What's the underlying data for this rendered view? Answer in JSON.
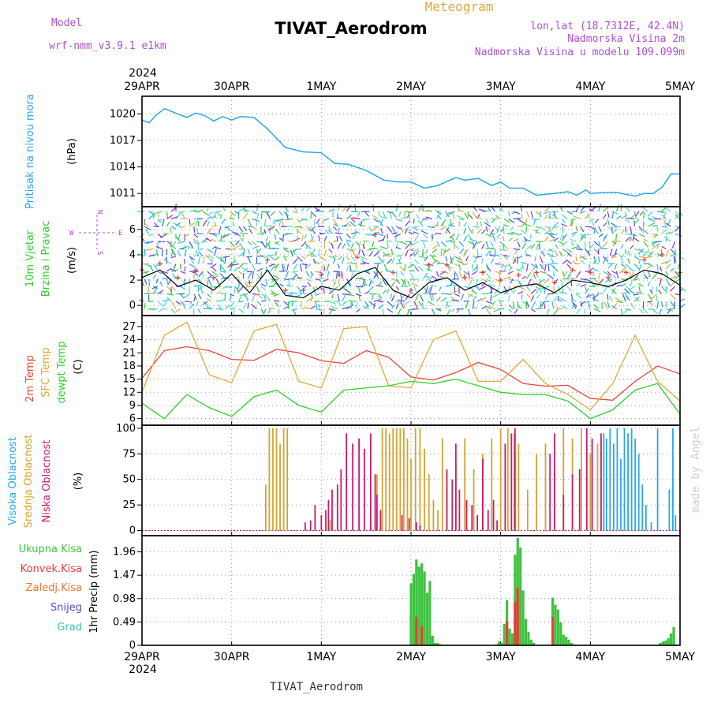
{
  "header": {
    "model_label": "Model",
    "model_name": "wrf-nmm_v3.9.1 e1km",
    "title": "TIVAT_Aerodrom",
    "meteogram_label": "Meteogram",
    "lonlat": "lon,lat (18.7312E, 42.4N)",
    "altitude": "Nadmorska Visina 2m",
    "model_altitude": "Nadmorska Visina u modelu 109.099m",
    "watermark": "made by Angel",
    "footer": "TIVAT_Aerodrom",
    "year": "2024"
  },
  "colors": {
    "pressure": "#29a7e8",
    "temp": "#e8453c",
    "sfc_temp": "#e0a93c",
    "dewpt": "#2fcf2f",
    "high_cloud": "#29a7e8",
    "mid_cloud": "#d6a330",
    "low_cloud": "#c81c6a",
    "total_precip": "#3fc23f",
    "conv_precip": "#e83c3c",
    "frozen_precip": "#f0752d",
    "snow": "#4b4bd8",
    "grad": "#3cbfae",
    "wind_speed": "#000000",
    "wind_gust": "#e83c3c",
    "header_purple": "#b04fd6",
    "meteogram_orange": "#e0a93c"
  },
  "x_axis": {
    "dates": [
      "29APR",
      "30APR",
      "1MAY",
      "2MAY",
      "3MAY",
      "4MAY",
      "5MAY"
    ],
    "range_days": [
      0,
      6
    ]
  },
  "chart_data": [
    {
      "type": "line",
      "panel": "pressure",
      "ylabel": "Pritisak na nivou mora",
      "unit": "(hPa)",
      "yticks": [
        1011,
        1014,
        1017,
        1020
      ],
      "ylim": [
        1009.5,
        1022
      ],
      "x": [
        0,
        0.08,
        0.15,
        0.25,
        0.4,
        0.5,
        0.6,
        0.7,
        0.8,
        0.9,
        1.0,
        1.1,
        1.25,
        1.4,
        1.6,
        1.8,
        2.0,
        2.15,
        2.3,
        2.5,
        2.7,
        2.85,
        3.0,
        3.15,
        3.3,
        3.5,
        3.6,
        3.75,
        3.9,
        4.0,
        4.1,
        4.25,
        4.4,
        4.6,
        4.75,
        4.85,
        4.95,
        5.0,
        5.15,
        5.3,
        5.5,
        5.6,
        5.7,
        5.8,
        5.9,
        6.0
      ],
      "values": [
        1019.3,
        1019.0,
        1019.8,
        1020.6,
        1020.0,
        1019.6,
        1020.1,
        1019.8,
        1019.2,
        1019.7,
        1019.3,
        1019.7,
        1019.6,
        1018.3,
        1016.2,
        1015.7,
        1015.6,
        1014.4,
        1014.3,
        1013.6,
        1012.5,
        1012.3,
        1012.3,
        1011.6,
        1011.9,
        1012.8,
        1012.5,
        1012.7,
        1011.9,
        1012.3,
        1011.6,
        1011.6,
        1010.8,
        1011.0,
        1011.2,
        1010.8,
        1011.4,
        1011.0,
        1011.1,
        1011.1,
        1010.7,
        1011.0,
        1011.0,
        1011.7,
        1013.2,
        1013.2
      ],
      "series": [
        {
          "name": "Pritisak na nivou mora"
        }
      ]
    },
    {
      "type": "line",
      "panel": "wind",
      "ylabel": "10m Vjetar",
      "ylabel2": "Brzina i Pravac",
      "unit": "(m/s)",
      "compass": {
        "w": "W",
        "e": "E",
        "n": "N",
        "s": "S"
      },
      "yticks": [
        0,
        2,
        4,
        6
      ],
      "ylim": [
        -0.8,
        7.8
      ],
      "x": [
        0,
        0.2,
        0.4,
        0.6,
        0.8,
        1.0,
        1.2,
        1.4,
        1.6,
        1.8,
        2.0,
        2.2,
        2.4,
        2.6,
        2.8,
        3.0,
        3.2,
        3.4,
        3.6,
        3.8,
        4.0,
        4.2,
        4.4,
        4.6,
        4.8,
        5.0,
        5.2,
        5.4,
        5.6,
        5.8,
        6.0
      ],
      "values": [
        2.2,
        2.8,
        1.5,
        2.0,
        1.2,
        2.5,
        1.0,
        2.8,
        0.8,
        0.6,
        1.5,
        1.2,
        2.5,
        3.0,
        1.2,
        0.6,
        1.8,
        2.2,
        1.2,
        1.8,
        1.0,
        1.5,
        1.7,
        1.0,
        2.0,
        1.8,
        1.5,
        2.0,
        2.8,
        2.5,
        1.6
      ],
      "gusts": [
        2.8,
        3.3,
        2.2,
        2.8,
        2.2,
        3.2,
        1.8,
        3.6,
        1.2,
        1.2,
        2.4,
        2.4,
        3.8,
        5.6,
        2.6,
        1.2,
        3.2,
        3.2,
        2.2,
        2.6,
        2.0,
        2.4,
        2.6,
        1.8,
        2.8,
        2.6,
        2.2,
        2.6,
        3.6,
        4.0,
        2.6
      ],
      "series": [
        {
          "name": "10m Vjetar"
        }
      ]
    },
    {
      "type": "line",
      "panel": "temperature",
      "unit": "(C)",
      "yticks": [
        6,
        9,
        12,
        15,
        18,
        21,
        24,
        27
      ],
      "ylim": [
        4.5,
        29.5
      ],
      "x": [
        0,
        0.25,
        0.5,
        0.75,
        1.0,
        1.25,
        1.5,
        1.75,
        2.0,
        2.25,
        2.5,
        2.75,
        3.0,
        3.25,
        3.5,
        3.75,
        4.0,
        4.25,
        4.5,
        4.75,
        5.0,
        5.25,
        5.5,
        5.75,
        6.0
      ],
      "series": [
        {
          "name": "2m Temp",
          "values": [
            15.2,
            21.5,
            22.4,
            21.5,
            19.5,
            19.3,
            21.8,
            21.0,
            19.2,
            18.6,
            21.5,
            20.0,
            15.5,
            14.8,
            16.5,
            18.8,
            17.2,
            14.0,
            13.4,
            13.6,
            10.6,
            10.2,
            14.5,
            18.0,
            16.2
          ]
        },
        {
          "name": "SFC Temp",
          "values": [
            12.0,
            25.0,
            28.0,
            16.0,
            14.2,
            26.0,
            27.5,
            14.5,
            13.0,
            26.5,
            27.0,
            13.5,
            13.0,
            24.0,
            26.0,
            14.5,
            14.5,
            19.5,
            14.0,
            11.5,
            8.0,
            14.0,
            25.0,
            14.5,
            10.0
          ]
        },
        {
          "name": "dewpt Temp",
          "values": [
            9.5,
            6.0,
            11.5,
            8.5,
            6.5,
            11.0,
            12.5,
            9.0,
            7.5,
            12.5,
            13.0,
            13.5,
            14.5,
            14.0,
            15.0,
            13.5,
            12.0,
            11.5,
            11.5,
            10.0,
            6.0,
            8.0,
            12.5,
            14.0,
            7.0
          ]
        }
      ]
    },
    {
      "type": "bar",
      "panel": "cloud",
      "unit": "(%)",
      "yticks": [
        0,
        25,
        50,
        75,
        100
      ],
      "ylim": [
        -5,
        103
      ],
      "series": [
        {
          "name": "Visoka Oblacnost",
          "x": [
            5.15,
            5.18,
            5.22,
            5.26,
            5.3,
            5.34,
            5.38,
            5.42,
            5.46,
            5.5,
            5.54,
            5.58,
            5.62,
            5.68,
            5.75,
            5.88,
            5.92,
            5.95
          ],
          "values": [
            95,
            90,
            100,
            85,
            100,
            70,
            100,
            95,
            100,
            90,
            75,
            45,
            25,
            8,
            100,
            40,
            100,
            15
          ]
        },
        {
          "name": "Srednja Oblacnost",
          "x": [
            1.38,
            1.42,
            1.46,
            1.5,
            1.54,
            1.58,
            1.62,
            2.1,
            2.55,
            2.62,
            2.68,
            2.72,
            2.76,
            2.8,
            2.84,
            2.88,
            2.92,
            2.96,
            3.0,
            3.05,
            3.1,
            3.15,
            3.2,
            3.25,
            3.3,
            3.35,
            3.4,
            3.5,
            3.6,
            3.7,
            3.8,
            3.9,
            4.0,
            4.08,
            4.15,
            4.2,
            4.3,
            4.4,
            4.5,
            4.6,
            4.7,
            4.8,
            4.9,
            5.0,
            5.08
          ],
          "values": [
            45,
            100,
            100,
            100,
            85,
            100,
            100,
            10,
            8,
            55,
            100,
            100,
            95,
            100,
            100,
            100,
            100,
            90,
            70,
            100,
            100,
            80,
            55,
            30,
            20,
            90,
            45,
            65,
            90,
            60,
            75,
            90,
            100,
            100,
            95,
            85,
            40,
            75,
            85,
            60,
            100,
            90,
            100,
            75,
            85
          ]
        },
        {
          "name": "Niska Oblacnost",
          "x": [
            1.82,
            1.88,
            1.93,
            2.0,
            2.05,
            2.08,
            2.12,
            2.18,
            2.22,
            2.28,
            2.35,
            2.42,
            2.48,
            2.55,
            2.6,
            2.62,
            2.66,
            2.9,
            2.98,
            3.06,
            3.1,
            3.4,
            3.46,
            3.5,
            3.54,
            3.62,
            3.68,
            3.74,
            3.8,
            3.86,
            3.92,
            3.96,
            4.05,
            4.12,
            4.16,
            4.55,
            4.6,
            4.7,
            4.8,
            4.88,
            4.96,
            5.02,
            5.12
          ],
          "values": [
            8,
            10,
            25,
            15,
            20,
            30,
            40,
            45,
            60,
            95,
            85,
            90,
            80,
            95,
            55,
            35,
            20,
            15,
            12,
            8,
            5,
            60,
            50,
            85,
            40,
            30,
            25,
            15,
            70,
            20,
            30,
            10,
            85,
            95,
            100,
            75,
            95,
            35,
            55,
            60,
            100,
            90,
            95
          ]
        }
      ]
    },
    {
      "type": "bar",
      "panel": "precip",
      "unit": "1hr Precip (mm)",
      "yticks": [
        0,
        0.49,
        0.98,
        1.47,
        1.96
      ],
      "ylim": [
        0,
        2.3
      ],
      "series": [
        {
          "name": "Ukupna Kisa",
          "x": [
            3.0,
            3.03,
            3.06,
            3.09,
            3.12,
            3.15,
            3.18,
            3.21,
            3.24,
            3.27,
            3.3,
            3.33,
            3.95,
            3.98,
            4.01,
            4.04,
            4.07,
            4.1,
            4.13,
            4.16,
            4.19,
            4.22,
            4.25,
            4.28,
            4.31,
            4.34,
            4.37,
            4.58,
            4.61,
            4.64,
            4.67,
            4.7,
            4.73,
            4.76,
            4.79,
            4.82,
            5.78,
            5.81,
            5.84,
            5.87,
            5.9,
            5.93,
            5.96
          ],
          "values": [
            1.3,
            1.5,
            1.8,
            1.65,
            1.72,
            1.55,
            1.1,
            1.35,
            0.2,
            0.05,
            0.05,
            0.02,
            0.02,
            0.08,
            0.05,
            0.45,
            0.95,
            0.35,
            0.25,
            1.9,
            2.25,
            2.05,
            1.15,
            0.55,
            0.28,
            0.12,
            0.05,
            1.0,
            0.85,
            0.75,
            0.48,
            0.22,
            0.18,
            0.12,
            0.05,
            0.02,
            0.05,
            0.08,
            0.1,
            0.15,
            0.25,
            0.38,
            0.02
          ]
        },
        {
          "name": "Konvek.Kisa",
          "x": [
            3.06,
            3.12,
            4.07,
            4.16,
            4.19,
            4.58
          ],
          "values": [
            0.6,
            0.4,
            0.5,
            0.9,
            1.2,
            0.6
          ]
        },
        {
          "name": "Zaledj.Kisa",
          "x": [],
          "values": []
        },
        {
          "name": "Snijeg",
          "x": [],
          "values": []
        },
        {
          "name": "Grad",
          "x": [],
          "values": []
        }
      ]
    }
  ]
}
